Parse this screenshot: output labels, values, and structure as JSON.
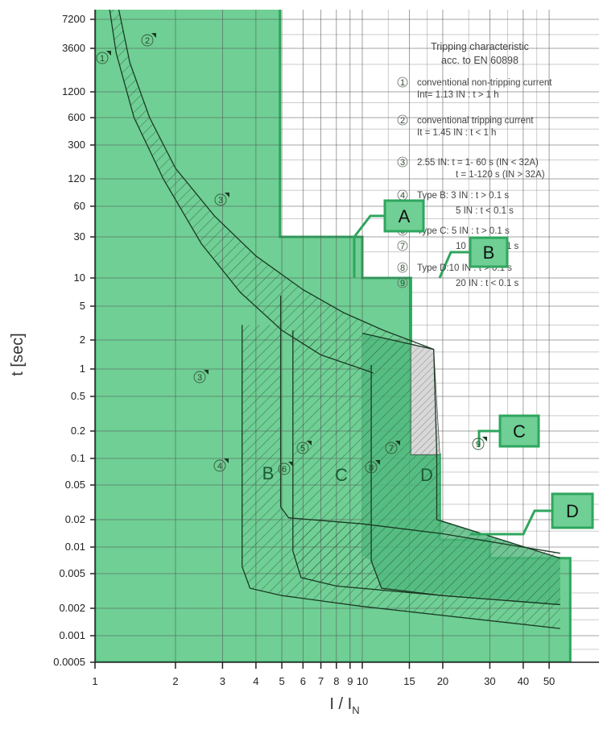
{
  "chart_data": {
    "type": "line",
    "xlabel": "I / I",
    "xlabel_sub": "N",
    "ylabel": "t [sec]",
    "x_scale": "log",
    "y_scale": "log",
    "xlim": [
      1,
      55
    ],
    "ylim": [
      0.0005,
      10000
    ],
    "x_ticks": [
      1,
      2,
      3,
      4,
      5,
      6,
      7,
      8,
      9,
      10,
      15,
      20,
      30,
      40,
      50
    ],
    "x_tick_labels": [
      "1",
      "2",
      "3",
      "4",
      "5",
      "6",
      "7",
      "8",
      "9",
      "10",
      "15",
      "20",
      "30",
      "40",
      "50"
    ],
    "y_ticks": [
      0.0005,
      0.001,
      0.002,
      0.005,
      0.01,
      0.02,
      0.05,
      0.1,
      0.2,
      0.5,
      1,
      2,
      5,
      10,
      30,
      60,
      120,
      300,
      600,
      1200,
      3600,
      7200
    ],
    "y_tick_labels": [
      "0.0005",
      "0.001",
      "0.002",
      "0.005",
      "0.01",
      "0.02",
      "0.05",
      "0.1",
      "0.2",
      "0.5",
      "1",
      "2",
      "5",
      "10",
      "30",
      "60",
      "120",
      "300",
      "600",
      "1200",
      "3600",
      "7200"
    ],
    "grid": true,
    "legend": {
      "title_lines": [
        "Tripping characteristic",
        "acc. to EN 60898"
      ],
      "items": [
        {
          "num": "1",
          "lines": [
            "conventional non-tripping current",
            "Int= 1.13 IN : t > 1 h"
          ]
        },
        {
          "num": "2",
          "lines": [
            "conventional tripping current",
            "It = 1.45 IN : t < 1 h"
          ]
        },
        {
          "num": "3",
          "lines": [
            "2.55 IN: t = 1- 60 s (IN < 32A)",
            "t = 1-120 s (IN > 32A)"
          ]
        },
        {
          "num": "4",
          "lines": [
            "Type B: 3 IN : t > 0.1 s"
          ]
        },
        {
          "num": "5",
          "lines": [
            "5 IN : t < 0.1 s"
          ]
        },
        {
          "num": "6",
          "lines": [
            "Type C: 5 IN : t > 0.1 s"
          ]
        },
        {
          "num": "7",
          "lines": [
            "10 IN : t < 0.1 s"
          ]
        },
        {
          "num": "8",
          "lines": [
            "Type D:10 IN : t > 0.1 s"
          ]
        },
        {
          "num": "9",
          "lines": [
            "20 IN : t < 0.1 s"
          ]
        }
      ]
    },
    "zone_labels": [
      "B",
      "C",
      "D"
    ],
    "callouts": [
      "A",
      "B",
      "C",
      "D"
    ],
    "colors": {
      "green_fill": "#6fcf94",
      "green_edge": "#2fa65e",
      "grid": "#555555",
      "curve": "#1a3a24",
      "hatch_gray": "#c8c8c8"
    },
    "series": [
      {
        "points": [
          [
            1.22,
            10000
          ],
          [
            1.35,
            2500
          ],
          [
            1.6,
            600
          ],
          [
            2.0,
            160
          ],
          [
            2.8,
            48
          ],
          [
            4.0,
            18
          ],
          [
            6.0,
            7.5
          ],
          [
            8.5,
            4.2
          ],
          [
            12.0,
            2.6
          ],
          [
            18.5,
            1.6
          ]
        ]
      },
      {
        "points": [
          [
            1.13,
            10000
          ],
          [
            1.2,
            3200
          ],
          [
            1.4,
            600
          ],
          [
            1.8,
            120
          ],
          [
            2.5,
            25
          ],
          [
            3.5,
            7
          ],
          [
            5.0,
            2.6
          ],
          [
            7.0,
            1.4
          ],
          [
            10.5,
            0.95
          ],
          [
            11,
            0.9
          ]
        ]
      },
      {
        "points": [
          [
            3.55,
            3
          ],
          [
            3.55,
            0.006
          ],
          [
            3.8,
            0.0034
          ],
          [
            5,
            0.0028
          ],
          [
            10,
            0.0021
          ],
          [
            55,
            0.0012
          ]
        ]
      },
      {
        "points": [
          [
            4.95,
            6.5
          ],
          [
            4.95,
            0.028
          ],
          [
            5.3,
            0.021
          ],
          [
            10,
            0.018
          ],
          [
            20,
            0.014
          ],
          [
            55,
            0.0085
          ]
        ]
      },
      {
        "points": [
          [
            5.5,
            2.6
          ],
          [
            5.5,
            0.009
          ],
          [
            5.9,
            0.0045
          ],
          [
            8,
            0.0036
          ],
          [
            20,
            0.0028
          ],
          [
            55,
            0.0022
          ]
        ]
      },
      {
        "points": [
          [
            10.8,
            1.1
          ],
          [
            10.8,
            0.007
          ],
          [
            11.8,
            0.0034
          ],
          [
            20,
            0.0028
          ],
          [
            55,
            0.0022
          ]
        ]
      },
      {
        "points": [
          [
            10,
            2.4
          ],
          [
            18.5,
            1.6
          ],
          [
            19,
            0.11
          ],
          [
            19,
            0.02
          ],
          [
            55,
            0.0075
          ]
        ]
      }
    ]
  }
}
